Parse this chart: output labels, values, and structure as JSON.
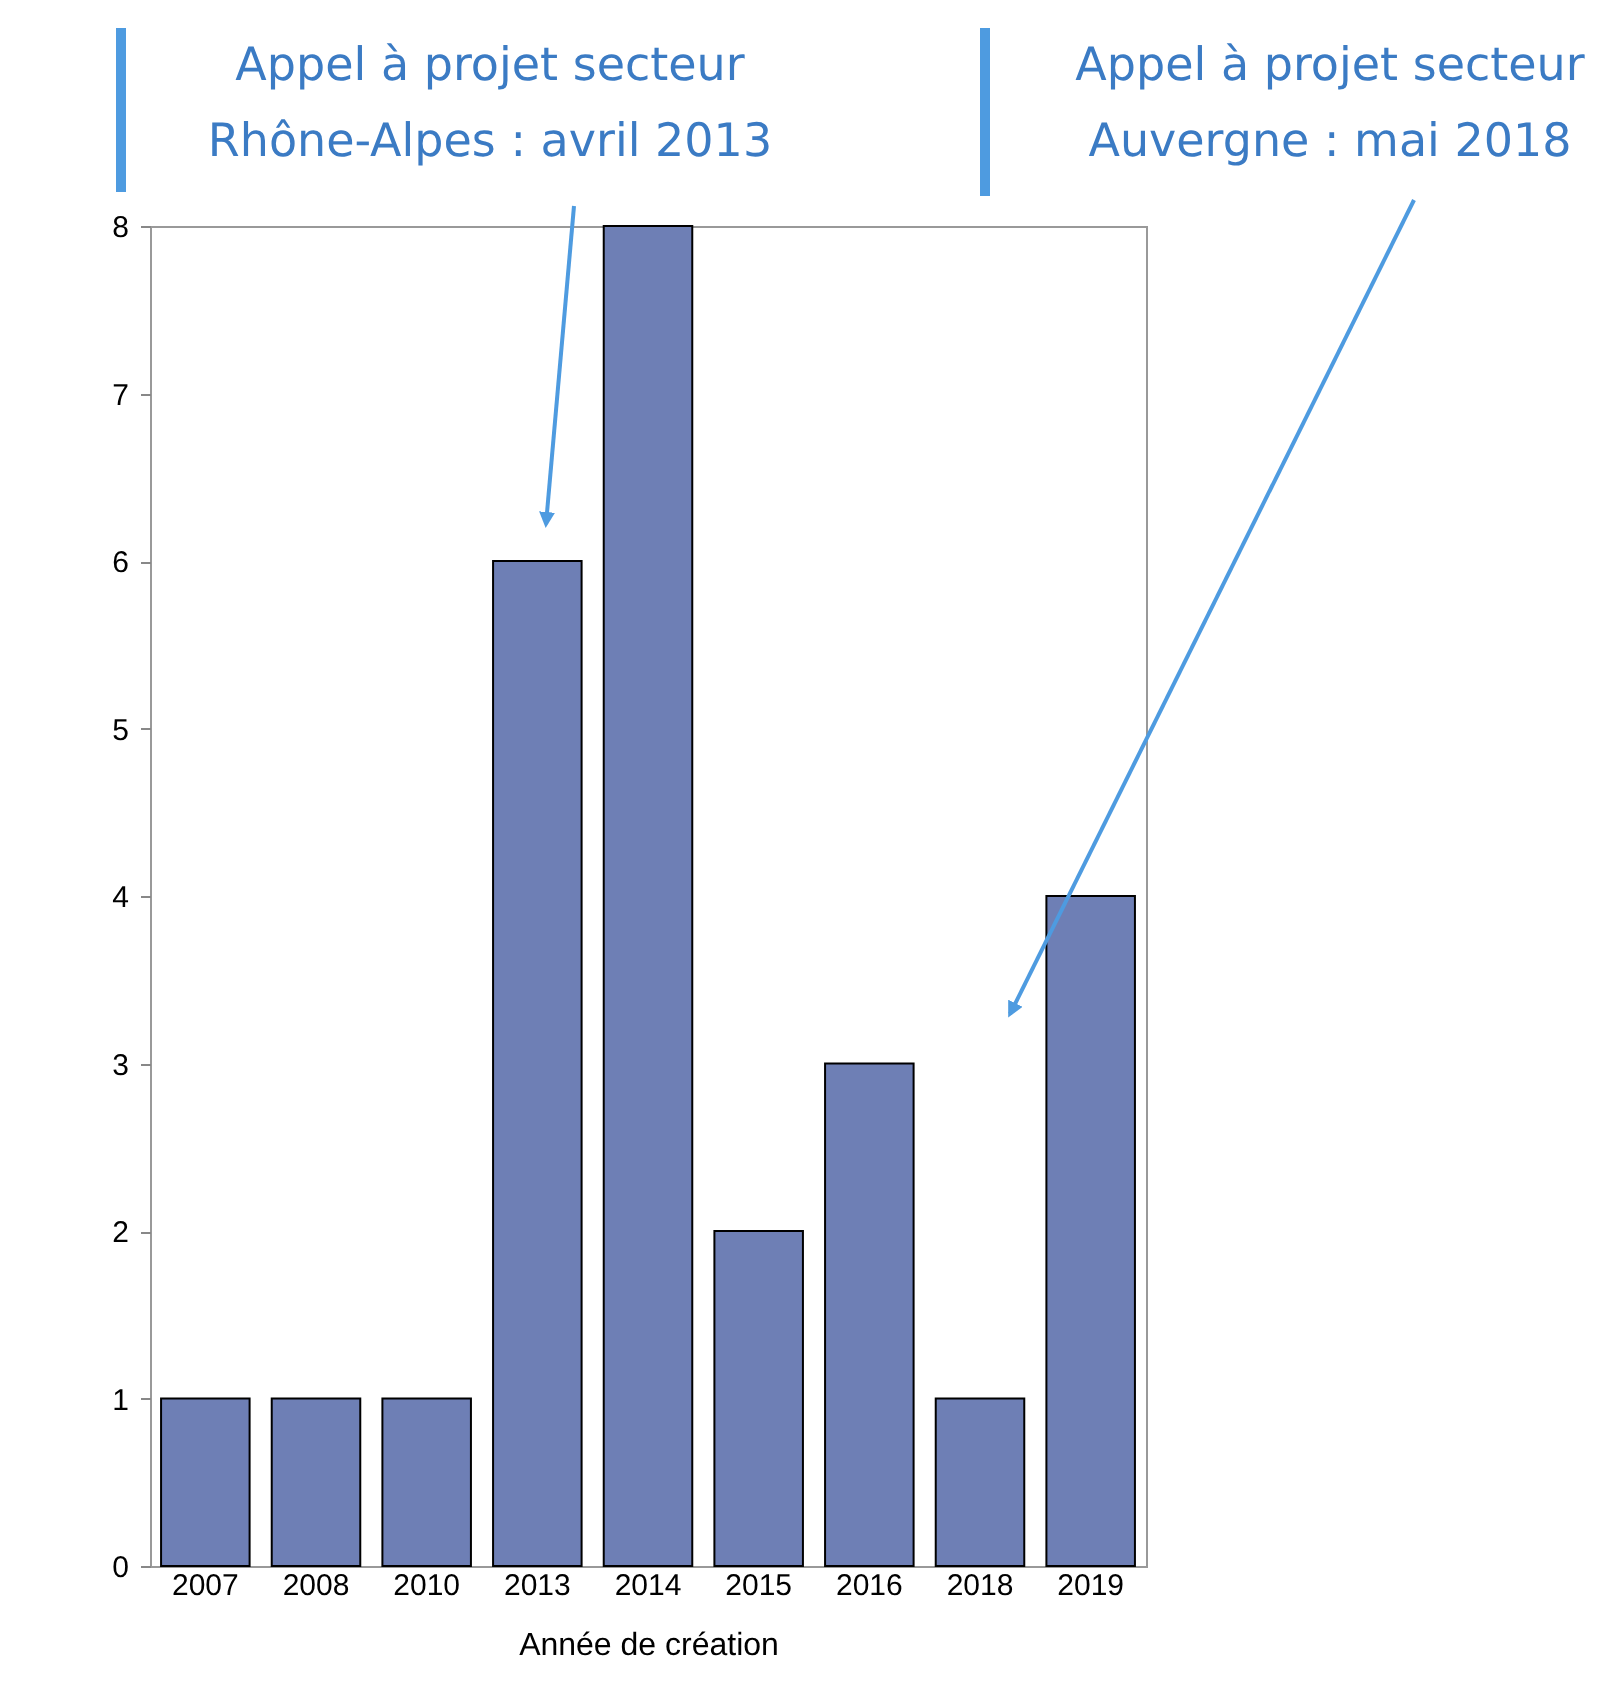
{
  "chart_data": {
    "type": "bar",
    "xlabel": "Année de création",
    "categories": [
      "2007",
      "2008",
      "2010",
      "2013",
      "2014",
      "2015",
      "2016",
      "2018",
      "2019"
    ],
    "values": [
      1,
      1,
      1,
      6,
      8,
      2,
      3,
      1,
      4
    ],
    "color": "#6e7fb5",
    "ylim": [
      0,
      8
    ],
    "yticks": [
      0,
      1,
      2,
      3,
      4,
      5,
      6,
      7,
      8
    ],
    "grid": false,
    "annotations": [
      "Appel à projet secteur\nRhône-Alpes : avril 2013",
      "Appel à projet secteur\nAuvergne : mai 2018"
    ]
  }
}
